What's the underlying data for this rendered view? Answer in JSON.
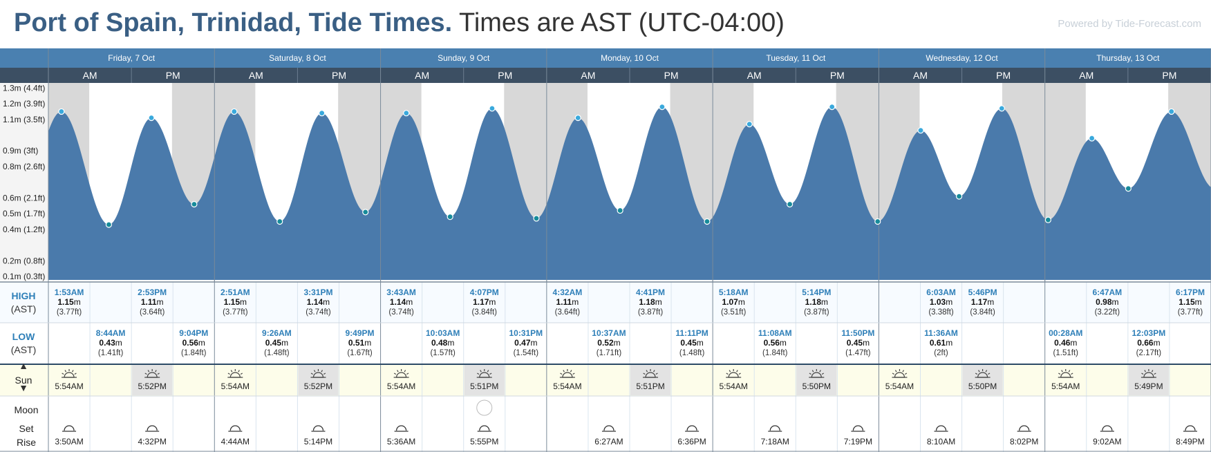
{
  "header": {
    "place": "Port of Spain, Trinidad, Tide Times.",
    "timezone": "Times are AST (UTC-04:00)",
    "powered_by": "Powered by Tide-Forecast.com"
  },
  "row_labels": {
    "high": "HIGH",
    "high_tz": "(AST)",
    "low": "LOW",
    "low_tz": "(AST)",
    "sun": "Sun",
    "moon": "Moon",
    "moon_set": "Set",
    "moon_rise": "Rise"
  },
  "ampm": {
    "am": "AM",
    "pm": "PM"
  },
  "chart_data": {
    "type": "area",
    "ylabel": "",
    "ylim_m": [
      0.1,
      1.35
    ],
    "yticks": [
      {
        "m": 0.1,
        "label": "0.1m (0.3ft)"
      },
      {
        "m": 0.2,
        "label": "0.2m (0.8ft)"
      },
      {
        "m": 0.4,
        "label": "0.4m (1.2ft)"
      },
      {
        "m": 0.5,
        "label": "0.5m (1.7ft)"
      },
      {
        "m": 0.6,
        "label": "0.6m (2.1ft)"
      },
      {
        "m": 0.8,
        "label": "0.8m (2.6ft)"
      },
      {
        "m": 0.9,
        "label": "0.9m (3ft)"
      },
      {
        "m": 1.1,
        "label": "1.1m (3.5ft)"
      },
      {
        "m": 1.2,
        "label": "1.2m (3.9ft)"
      },
      {
        "m": 1.3,
        "label": "1.3m (4.4ft)"
      }
    ],
    "days": [
      {
        "label": "Friday, 7 Oct"
      },
      {
        "label": "Saturday, 8 Oct"
      },
      {
        "label": "Sunday, 9 Oct"
      },
      {
        "label": "Monday, 10 Oct"
      },
      {
        "label": "Tuesday, 11 Oct"
      },
      {
        "label": "Wednesday, 12 Oct"
      },
      {
        "label": "Thursday, 13 Oct"
      }
    ],
    "tides": [
      {
        "day": 0,
        "time": "1:53AM",
        "m": "1.15",
        "ft": "(3.77ft)",
        "type": "high"
      },
      {
        "day": 0,
        "time": "8:44AM",
        "m": "0.43",
        "ft": "(1.41ft)",
        "type": "low"
      },
      {
        "day": 0,
        "time": "2:53PM",
        "m": "1.11",
        "ft": "(3.64ft)",
        "type": "high"
      },
      {
        "day": 0,
        "time": "9:04PM",
        "m": "0.56",
        "ft": "(1.84ft)",
        "type": "low"
      },
      {
        "day": 1,
        "time": "2:51AM",
        "m": "1.15",
        "ft": "(3.77ft)",
        "type": "high"
      },
      {
        "day": 1,
        "time": "9:26AM",
        "m": "0.45",
        "ft": "(1.48ft)",
        "type": "low"
      },
      {
        "day": 1,
        "time": "3:31PM",
        "m": "1.14",
        "ft": "(3.74ft)",
        "type": "high"
      },
      {
        "day": 1,
        "time": "9:49PM",
        "m": "0.51",
        "ft": "(1.67ft)",
        "type": "low"
      },
      {
        "day": 2,
        "time": "3:43AM",
        "m": "1.14",
        "ft": "(3.74ft)",
        "type": "high"
      },
      {
        "day": 2,
        "time": "10:03AM",
        "m": "0.48",
        "ft": "(1.57ft)",
        "type": "low"
      },
      {
        "day": 2,
        "time": "4:07PM",
        "m": "1.17",
        "ft": "(3.84ft)",
        "type": "high"
      },
      {
        "day": 2,
        "time": "10:31PM",
        "m": "0.47",
        "ft": "(1.54ft)",
        "type": "low"
      },
      {
        "day": 3,
        "time": "4:32AM",
        "m": "1.11",
        "ft": "(3.64ft)",
        "type": "high"
      },
      {
        "day": 3,
        "time": "10:37AM",
        "m": "0.52",
        "ft": "(1.71ft)",
        "type": "low"
      },
      {
        "day": 3,
        "time": "4:41PM",
        "m": "1.18",
        "ft": "(3.87ft)",
        "type": "high"
      },
      {
        "day": 3,
        "time": "11:11PM",
        "m": "0.45",
        "ft": "(1.48ft)",
        "type": "low"
      },
      {
        "day": 4,
        "time": "5:18AM",
        "m": "1.07",
        "ft": "(3.51ft)",
        "type": "high"
      },
      {
        "day": 4,
        "time": "11:08AM",
        "m": "0.56",
        "ft": "(1.84ft)",
        "type": "low"
      },
      {
        "day": 4,
        "time": "5:14PM",
        "m": "1.18",
        "ft": "(3.87ft)",
        "type": "high"
      },
      {
        "day": 4,
        "time": "11:50PM",
        "m": "0.45",
        "ft": "(1.47ft)",
        "type": "low"
      },
      {
        "day": 5,
        "time": "6:03AM",
        "m": "1.03",
        "ft": "(3.38ft)",
        "type": "high"
      },
      {
        "day": 5,
        "time": "11:36AM",
        "m": "0.61",
        "ft": "(2ft)",
        "type": "low"
      },
      {
        "day": 5,
        "time": "5:46PM",
        "m": "1.17",
        "ft": "(3.84ft)",
        "type": "high"
      },
      {
        "day": 6,
        "time": "00:28AM",
        "m": "0.46",
        "ft": "(1.51ft)",
        "type": "low"
      },
      {
        "day": 6,
        "time": "6:47AM",
        "m": "0.98",
        "ft": "(3.22ft)",
        "type": "high"
      },
      {
        "day": 6,
        "time": "12:03PM",
        "m": "0.66",
        "ft": "(2.17ft)",
        "type": "low"
      },
      {
        "day": 6,
        "time": "6:17PM",
        "m": "1.15",
        "ft": "(3.77ft)",
        "type": "high"
      }
    ],
    "sun": [
      {
        "day": 0,
        "rise": "5:54AM",
        "set": "5:52PM"
      },
      {
        "day": 1,
        "rise": "5:54AM",
        "set": "5:52PM"
      },
      {
        "day": 2,
        "rise": "5:54AM",
        "set": "5:51PM"
      },
      {
        "day": 3,
        "rise": "5:54AM",
        "set": "5:51PM"
      },
      {
        "day": 4,
        "rise": "5:54AM",
        "set": "5:50PM"
      },
      {
        "day": 5,
        "rise": "5:54AM",
        "set": "5:50PM"
      },
      {
        "day": 6,
        "rise": "5:54AM",
        "set": "5:49PM"
      }
    ],
    "moon": [
      {
        "day": 0,
        "time": "3:50AM",
        "type": "set"
      },
      {
        "day": 0,
        "time": "4:32PM",
        "type": "rise"
      },
      {
        "day": 1,
        "time": "4:44AM",
        "type": "set"
      },
      {
        "day": 1,
        "time": "5:14PM",
        "type": "rise"
      },
      {
        "day": 2,
        "time": "5:36AM",
        "type": "set"
      },
      {
        "day": 2,
        "time": "5:55PM",
        "type": "rise",
        "full_moon": true
      },
      {
        "day": 3,
        "time": "6:27AM",
        "type": "set"
      },
      {
        "day": 3,
        "time": "6:36PM",
        "type": "rise"
      },
      {
        "day": 4,
        "time": "7:18AM",
        "type": "set"
      },
      {
        "day": 4,
        "time": "7:19PM",
        "type": "rise"
      },
      {
        "day": 5,
        "time": "8:10AM",
        "type": "set"
      },
      {
        "day": 5,
        "time": "8:02PM",
        "type": "rise"
      },
      {
        "day": 6,
        "time": "9:02AM",
        "type": "set"
      },
      {
        "day": 6,
        "time": "8:49PM",
        "type": "rise"
      }
    ],
    "colors": {
      "water": "#4a7aab",
      "night": "#d8d8d8",
      "header_blue": "#4a80b0",
      "header_dark": "#3c4f63",
      "high_dot": "#3aa9dc",
      "low_dot": "#178b9a",
      "sun_bg": "#fdfdea",
      "sun_set_bg": "#e3e3e3",
      "accent": "#2e7fb8"
    }
  }
}
